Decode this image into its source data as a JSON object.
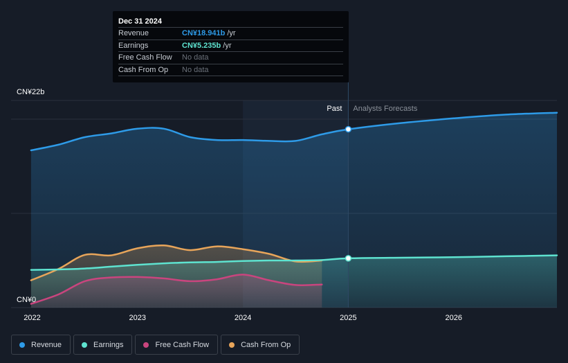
{
  "tooltip": {
    "date": "Dec 31 2024",
    "rows": [
      {
        "label": "Revenue",
        "value": "CN¥18.941b",
        "unit": "/yr",
        "color": "#2e9be8"
      },
      {
        "label": "Earnings",
        "value": "CN¥5.235b",
        "unit": "/yr",
        "color": "#5ee3d0"
      },
      {
        "label": "Free Cash Flow",
        "value": "No data",
        "unit": "",
        "color": ""
      },
      {
        "label": "Cash From Op",
        "value": "No data",
        "unit": "",
        "color": ""
      }
    ]
  },
  "chart_data": {
    "type": "line",
    "title": "",
    "ylim": [
      0,
      22
    ],
    "y_unit": "CN¥b",
    "y_ticks": [
      {
        "value": 22,
        "label": "CN¥22b"
      },
      {
        "value": 0,
        "label": "CN¥0"
      }
    ],
    "x_range": [
      2021.8,
      2026.98
    ],
    "x_ticks": [
      {
        "value": 2022,
        "label": "2022"
      },
      {
        "value": 2023,
        "label": "2023"
      },
      {
        "value": 2024,
        "label": "2024"
      },
      {
        "value": 2025,
        "label": "2025"
      },
      {
        "value": 2026,
        "label": "2026"
      }
    ],
    "past_label": "Past",
    "forecast_label": "Analysts Forecasts",
    "past_end": 2025.0,
    "highlight_start": 2024.0,
    "series": [
      {
        "name": "Revenue",
        "color": "#2e9be8",
        "fill": true,
        "x": [
          2021.99,
          2022.25,
          2022.5,
          2022.75,
          2023.0,
          2023.25,
          2023.5,
          2023.75,
          2024.0,
          2024.25,
          2024.5,
          2024.75,
          2025.0,
          2025.5,
          2026.0,
          2026.5,
          2026.98
        ],
        "y": [
          16.7,
          17.3,
          18.1,
          18.5,
          19.0,
          19.0,
          18.1,
          17.8,
          17.8,
          17.7,
          17.7,
          18.4,
          18.941,
          19.6,
          20.1,
          20.5,
          20.7
        ]
      },
      {
        "name": "Earnings",
        "color": "#5ee3d0",
        "fill": true,
        "x": [
          2021.99,
          2022.25,
          2022.5,
          2022.75,
          2023.0,
          2023.25,
          2023.5,
          2023.75,
          2024.0,
          2024.25,
          2024.5,
          2024.75,
          2025.0,
          2025.5,
          2026.0,
          2026.5,
          2026.98
        ],
        "y": [
          4.0,
          4.05,
          4.15,
          4.35,
          4.55,
          4.7,
          4.8,
          4.85,
          4.95,
          5.0,
          5.0,
          5.05,
          5.235,
          5.3,
          5.35,
          5.45,
          5.55
        ]
      },
      {
        "name": "Free Cash Flow",
        "color": "#c9457e",
        "fill": true,
        "x": [
          2021.99,
          2022.25,
          2022.5,
          2022.75,
          2023.0,
          2023.25,
          2023.5,
          2023.75,
          2024.0,
          2024.25,
          2024.5,
          2024.75
        ],
        "y": [
          0.4,
          1.4,
          2.8,
          3.2,
          3.25,
          3.1,
          2.8,
          3.0,
          3.5,
          2.9,
          2.4,
          2.45
        ]
      },
      {
        "name": "Cash From Op",
        "color": "#e8a55a",
        "fill": true,
        "x": [
          2021.99,
          2022.25,
          2022.5,
          2022.75,
          2023.0,
          2023.25,
          2023.5,
          2023.75,
          2024.0,
          2024.25,
          2024.5,
          2024.75
        ],
        "y": [
          2.9,
          4.1,
          5.6,
          5.55,
          6.3,
          6.6,
          6.1,
          6.5,
          6.2,
          5.7,
          4.9,
          5.0
        ]
      }
    ],
    "markers": [
      {
        "series": "Revenue",
        "x": 2025.0,
        "y": 18.941
      },
      {
        "series": "Earnings",
        "x": 2025.0,
        "y": 5.235
      }
    ]
  },
  "legend": [
    {
      "label": "Revenue",
      "color": "#2e9be8"
    },
    {
      "label": "Earnings",
      "color": "#5ee3d0"
    },
    {
      "label": "Free Cash Flow",
      "color": "#c9457e"
    },
    {
      "label": "Cash From Op",
      "color": "#e8a55a"
    }
  ]
}
